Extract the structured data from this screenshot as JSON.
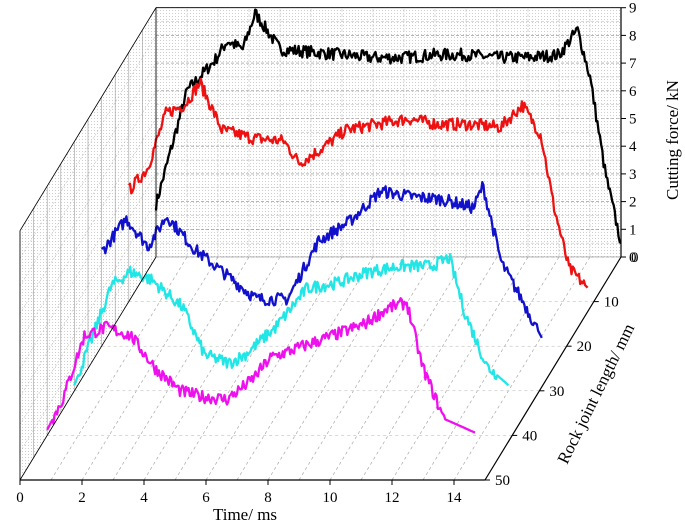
{
  "chart_data": {
    "type": "line",
    "subtype": "3d-waterfall",
    "xlabel": "Time/ ms",
    "ylabel": "Rock joint length/ mm",
    "zlabel": "Cutting force/ kN",
    "x_ticks": [
      "0",
      "2",
      "4",
      "6",
      "8",
      "10",
      "12",
      "14"
    ],
    "y_ticks": [
      "0",
      "10",
      "20",
      "30",
      "40",
      "50"
    ],
    "z_ticks": [
      "0",
      "1",
      "2",
      "3",
      "4",
      "5",
      "6",
      "7",
      "8",
      "9"
    ],
    "xlim": [
      0,
      15
    ],
    "ylim": [
      0,
      50
    ],
    "zlim": [
      0,
      9
    ],
    "grid": true,
    "series": [
      {
        "color": "#000000",
        "depth": 0,
        "points": [
          [
            0,
            1.9
          ],
          [
            1,
            6.0
          ],
          [
            1.9,
            7.1
          ],
          [
            2.3,
            7.8
          ],
          [
            2.8,
            7.5
          ],
          [
            3.2,
            8.8
          ],
          [
            4.0,
            7.5
          ],
          [
            5,
            7.4
          ],
          [
            6,
            7.3
          ],
          [
            7,
            7.2
          ],
          [
            8,
            7.2
          ],
          [
            9,
            7.3
          ],
          [
            10,
            7.3
          ],
          [
            11,
            7.2
          ],
          [
            12,
            7.2
          ],
          [
            13,
            7.3
          ],
          [
            13.6,
            8.2
          ],
          [
            14.0,
            6.5
          ],
          [
            14.5,
            3.0
          ],
          [
            15.0,
            0.5
          ]
        ]
      },
      {
        "color": "#ee1111",
        "depth": 10,
        "points": [
          [
            0,
            4.0
          ],
          [
            0.6,
            4.8
          ],
          [
            1.2,
            6.8
          ],
          [
            1.8,
            7.1
          ],
          [
            2.3,
            7.9
          ],
          [
            3.0,
            6.2
          ],
          [
            4,
            5.9
          ],
          [
            5,
            5.8
          ],
          [
            5.5,
            5.0
          ],
          [
            6.2,
            5.5
          ],
          [
            7,
            6.2
          ],
          [
            8,
            6.4
          ],
          [
            9,
            6.6
          ],
          [
            10,
            6.4
          ],
          [
            11,
            6.4
          ],
          [
            12,
            6.3
          ],
          [
            12.7,
            7.1
          ],
          [
            13.3,
            6.0
          ],
          [
            13.7,
            3.5
          ],
          [
            14.2,
            1.2
          ],
          [
            14.8,
            0.5
          ]
        ]
      },
      {
        "color": "#1111cc",
        "depth": 20,
        "points": [
          [
            0,
            3.4
          ],
          [
            0.8,
            4.6
          ],
          [
            1.5,
            3.6
          ],
          [
            2.1,
            4.7
          ],
          [
            3,
            3.5
          ],
          [
            4,
            2.6
          ],
          [
            5,
            1.7
          ],
          [
            6,
            1.7
          ],
          [
            7,
            3.8
          ],
          [
            8,
            4.5
          ],
          [
            9,
            5.6
          ],
          [
            10,
            5.4
          ],
          [
            11,
            5.3
          ],
          [
            12,
            5.0
          ],
          [
            12.3,
            5.8
          ],
          [
            12.9,
            3.0
          ],
          [
            13.6,
            1.6
          ],
          [
            14.2,
            0.3
          ]
        ]
      },
      {
        "color": "#22e6e6",
        "depth": 30,
        "points": [
          [
            0,
            0.2
          ],
          [
            1.2,
            3.8
          ],
          [
            1.8,
            4.3
          ],
          [
            2.5,
            4.0
          ],
          [
            3.5,
            3.0
          ],
          [
            4.2,
            1.3
          ],
          [
            5,
            1.0
          ],
          [
            5.5,
            1.3
          ],
          [
            6.5,
            2.3
          ],
          [
            7.5,
            3.7
          ],
          [
            8.5,
            3.9
          ],
          [
            9.5,
            4.3
          ],
          [
            10.5,
            4.5
          ],
          [
            11.5,
            4.5
          ],
          [
            12.1,
            4.8
          ],
          [
            12.6,
            2.8
          ],
          [
            13.3,
            0.9
          ],
          [
            14,
            0.2
          ]
        ]
      },
      {
        "color": "#ee11ee",
        "depth": 40,
        "points": [
          [
            0,
            0.2
          ],
          [
            0.5,
            1.3
          ],
          [
            1.2,
            3.6
          ],
          [
            1.9,
            3.9
          ],
          [
            2.7,
            3.6
          ],
          [
            3.5,
            2.4
          ],
          [
            4.3,
            1.6
          ],
          [
            5,
            1.4
          ],
          [
            5.8,
            1.3
          ],
          [
            6.6,
            2.0
          ],
          [
            7.2,
            2.8
          ],
          [
            8.2,
            3.2
          ],
          [
            9.2,
            3.6
          ],
          [
            10.2,
            4.0
          ],
          [
            11.0,
            4.6
          ],
          [
            11.6,
            4.8
          ],
          [
            12.1,
            2.5
          ],
          [
            12.8,
            0.6
          ],
          [
            13.8,
            0.1
          ]
        ]
      }
    ]
  }
}
